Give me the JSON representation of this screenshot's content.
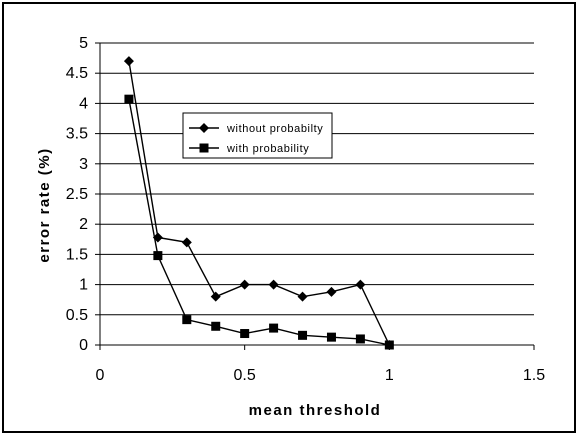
{
  "chart_data": {
    "type": "line",
    "title": "",
    "xlabel": "mean threshold",
    "ylabel": "error rate (%)",
    "xlim": [
      0,
      1.5
    ],
    "ylim": [
      0,
      5
    ],
    "x_ticks": [
      "0",
      "0.5",
      "1",
      "1.5"
    ],
    "y_ticks": [
      "0",
      "0.5",
      "1",
      "1.5",
      "2",
      "2.5",
      "3",
      "3.5",
      "4",
      "4.5",
      "5"
    ],
    "grid": "horizontal",
    "legend_position": "inside-upper-center",
    "series": [
      {
        "name": "without probabilty",
        "marker": "diamond",
        "x": [
          0.1,
          0.2,
          0.3,
          0.4,
          0.5,
          0.6,
          0.7,
          0.8,
          0.9,
          1.0
        ],
        "y": [
          4.7,
          1.78,
          1.7,
          0.8,
          1.0,
          1.0,
          0.8,
          0.88,
          1.0,
          0.0
        ]
      },
      {
        "name": "with probability",
        "marker": "square",
        "x": [
          0.1,
          0.2,
          0.3,
          0.4,
          0.5,
          0.6,
          0.7,
          0.8,
          0.9,
          1.0
        ],
        "y": [
          4.07,
          1.48,
          0.42,
          0.31,
          0.19,
          0.28,
          0.16,
          0.13,
          0.1,
          0.0
        ]
      }
    ]
  }
}
